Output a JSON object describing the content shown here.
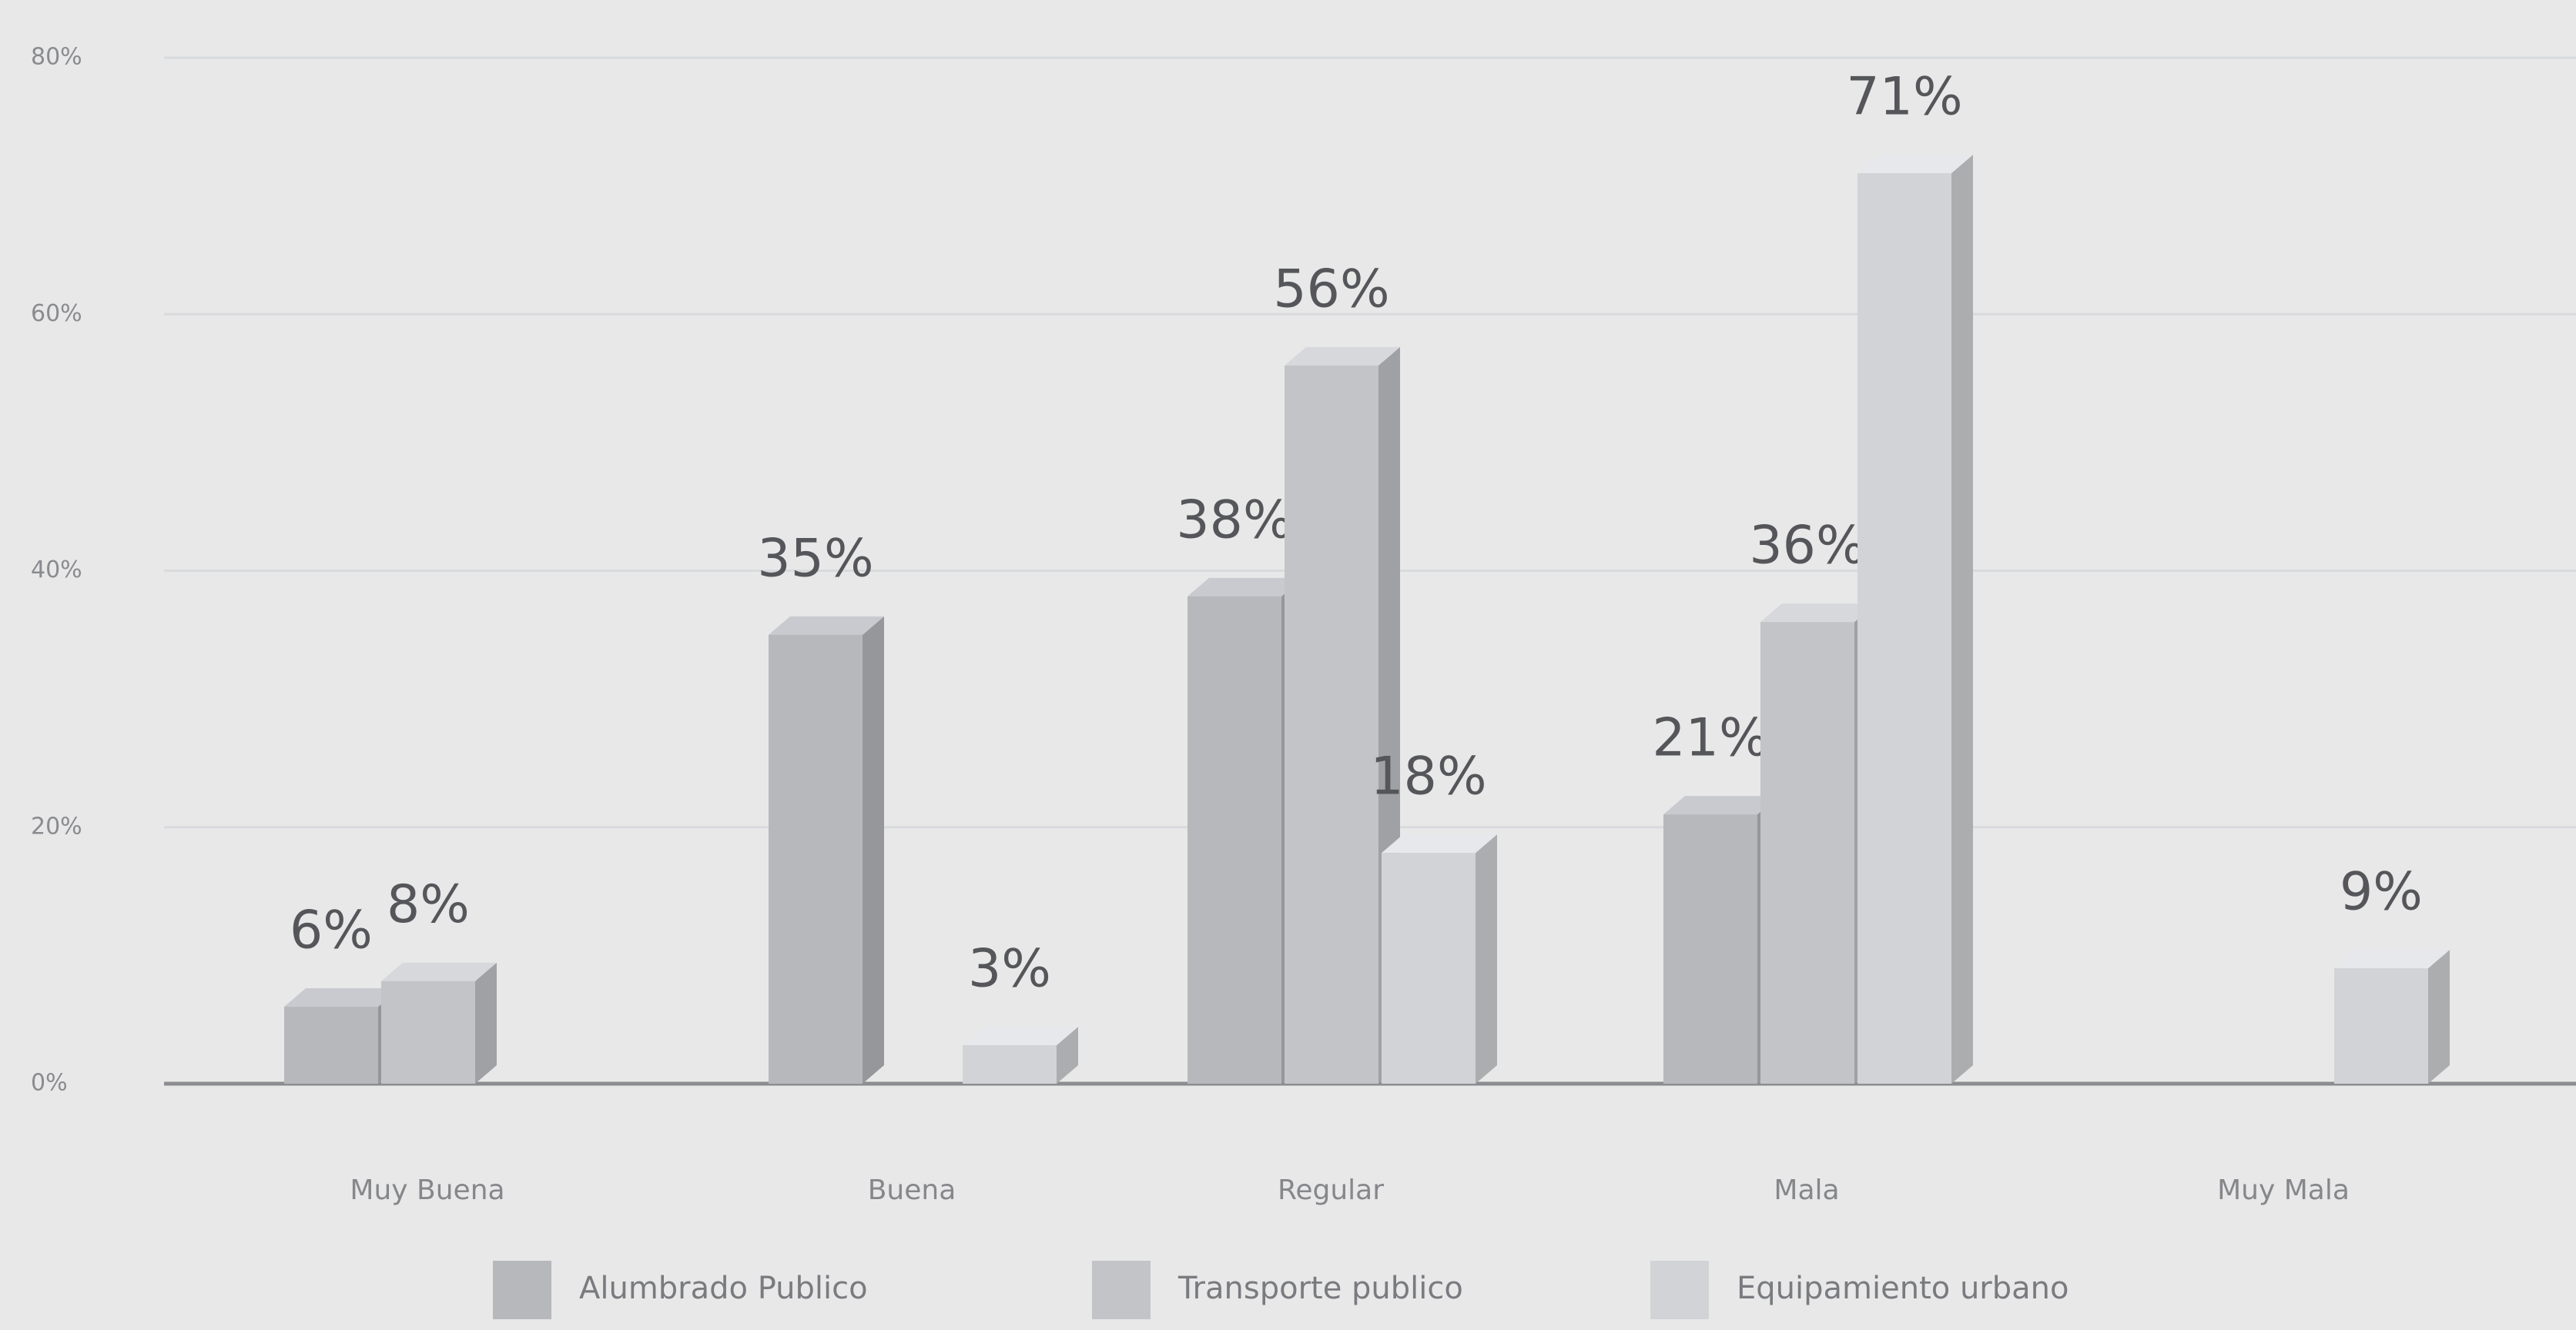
{
  "chart_data": {
    "type": "bar3d",
    "categories": [
      "Muy Buena",
      "Buena",
      "Regular",
      "Mala",
      "Muy Mala"
    ],
    "series": [
      {
        "name": "Alumbrado Publico",
        "color": "#b7b8bc",
        "values": [
          6,
          35,
          38,
          21,
          null
        ],
        "value_labels": [
          "6%",
          "35%",
          "38%",
          "21%",
          null
        ]
      },
      {
        "name": "Transporte publico",
        "color": "#c3c4c8",
        "values": [
          8,
          null,
          56,
          36,
          null
        ],
        "value_labels": [
          "8%",
          null,
          "56%",
          "36%",
          null
        ]
      },
      {
        "name": "Equipamiento urbano",
        "color": "#d2d3d6",
        "values": [
          null,
          3,
          18,
          71,
          9
        ],
        "value_labels": [
          null,
          "3%",
          "18%",
          "71%",
          "9%"
        ]
      }
    ],
    "ylim": [
      0,
      80
    ],
    "yticks": [
      {
        "value": 0,
        "label": "0%"
      },
      {
        "value": 20,
        "label": "20%"
      },
      {
        "value": 40,
        "label": "40%"
      },
      {
        "value": 60,
        "label": "60%"
      },
      {
        "value": 80,
        "label": "80%"
      }
    ],
    "grid": true,
    "legend": "bottom"
  }
}
